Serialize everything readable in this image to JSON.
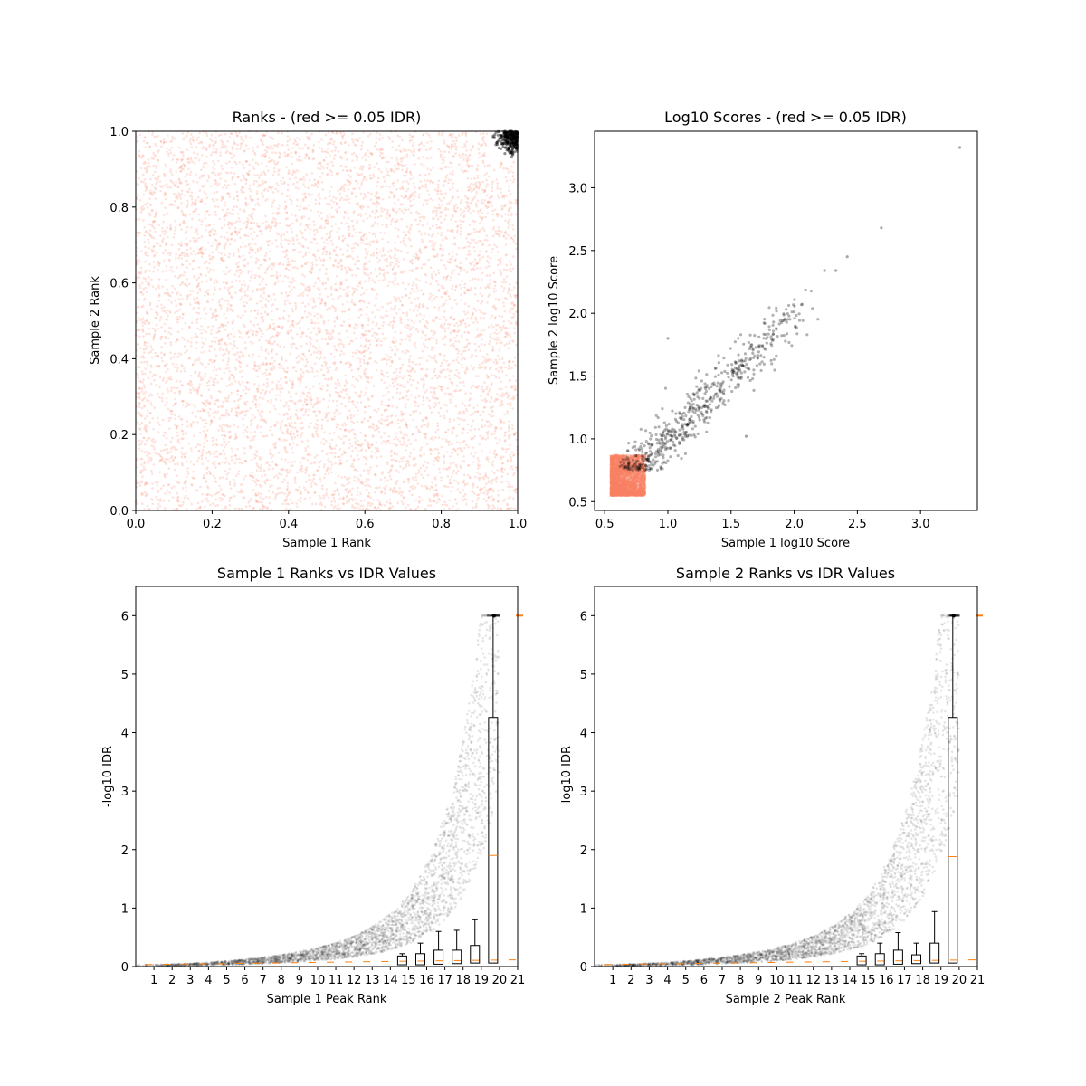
{
  "chart_data": [
    {
      "type": "scatter",
      "title": "Ranks - (red >= 0.05 IDR)",
      "xlabel": "Sample 1 Rank",
      "ylabel": "Sample 2 Rank",
      "xlim": [
        0,
        1
      ],
      "ylim": [
        0,
        1
      ],
      "xticks": [
        "0.0",
        "0.2",
        "0.4",
        "0.6",
        "0.8",
        "1.0"
      ],
      "yticks": [
        "0.0",
        "0.2",
        "0.4",
        "0.6",
        "0.8",
        "1.0"
      ],
      "grid": false,
      "colors": {
        "fail": "#fa8064",
        "pass": "#000000"
      },
      "series": [
        {
          "color_key": "fail",
          "description_x_range": [
            0,
            1
          ],
          "description_y_range": [
            0,
            1
          ]
        },
        {
          "color_key": "pass",
          "description_x_range": [
            0.92,
            1
          ],
          "description_y_range": [
            0.92,
            1
          ]
        }
      ]
    },
    {
      "type": "scatter",
      "title": "Log10 Scores - (red >= 0.05 IDR)",
      "xlabel": "Sample 1 log10 Score",
      "ylabel": "Sample 2 log10 Score",
      "xlim": [
        0.42,
        3.45
      ],
      "ylim": [
        0.43,
        3.45
      ],
      "xticks": [
        "0.5",
        "1.0",
        "1.5",
        "2.0",
        "2.5",
        "3.0"
      ],
      "yticks": [
        "0.5",
        "1.0",
        "1.5",
        "2.0",
        "2.5",
        "3.0"
      ],
      "grid": false,
      "colors": {
        "fail": "#fa8064",
        "pass": "#000000"
      },
      "outliers": [
        {
          "x": 3.31,
          "y": 3.32
        },
        {
          "x": 2.69,
          "y": 2.68
        },
        {
          "x": 2.42,
          "y": 2.45
        },
        {
          "x": 2.33,
          "y": 2.34
        },
        {
          "x": 2.24,
          "y": 2.34
        },
        {
          "x": 1.0,
          "y": 1.8
        },
        {
          "x": 1.62,
          "y": 1.02
        }
      ]
    },
    {
      "type": "scatter",
      "title": "Sample 1 Ranks vs IDR Values",
      "xlabel": "Sample 1 Peak Rank",
      "ylabel": "-log10 IDR",
      "xlim": [
        0,
        21
      ],
      "ylim": [
        0,
        6.5
      ],
      "xticks": [
        "1",
        "2",
        "3",
        "4",
        "5",
        "6",
        "7",
        "8",
        "9",
        "10",
        "11",
        "12",
        "13",
        "14",
        "15",
        "16",
        "17",
        "18",
        "19",
        "20",
        "21"
      ],
      "yticks": [
        "0",
        "1",
        "2",
        "3",
        "4",
        "5",
        "6"
      ],
      "grid": false,
      "boxes": [
        {
          "x": 15,
          "q1": 0.03,
          "q3": 0.18,
          "whisker": 0.22
        },
        {
          "x": 16,
          "q1": 0.03,
          "q3": 0.22,
          "whisker": 0.4
        },
        {
          "x": 17,
          "q1": 0.04,
          "q3": 0.28,
          "whisker": 0.6
        },
        {
          "x": 18,
          "q1": 0.05,
          "q3": 0.28,
          "whisker": 0.62
        },
        {
          "x": 19,
          "q1": 0.06,
          "q3": 0.36,
          "whisker": 0.8
        },
        {
          "x": 20,
          "q1": 0.06,
          "q3": 4.26,
          "median": 1.9,
          "whisker": 6.0
        }
      ],
      "max_value": 6.0
    },
    {
      "type": "scatter",
      "title": "Sample 2 Ranks vs IDR Values",
      "xlabel": "Sample 2 Peak Rank",
      "ylabel": "-log10 IDR",
      "xlim": [
        0,
        21
      ],
      "ylim": [
        0,
        6.5
      ],
      "xticks": [
        "1",
        "2",
        "3",
        "4",
        "5",
        "6",
        "7",
        "8",
        "9",
        "10",
        "11",
        "12",
        "13",
        "14",
        "15",
        "16",
        "17",
        "18",
        "19",
        "20",
        "21"
      ],
      "yticks": [
        "0",
        "1",
        "2",
        "3",
        "4",
        "5",
        "6"
      ],
      "grid": false,
      "boxes": [
        {
          "x": 15,
          "q1": 0.03,
          "q3": 0.18,
          "whisker": 0.22
        },
        {
          "x": 16,
          "q1": 0.03,
          "q3": 0.22,
          "whisker": 0.4
        },
        {
          "x": 17,
          "q1": 0.04,
          "q3": 0.28,
          "whisker": 0.58
        },
        {
          "x": 18,
          "q1": 0.05,
          "q3": 0.2,
          "whisker": 0.4
        },
        {
          "x": 19,
          "q1": 0.06,
          "q3": 0.4,
          "whisker": 0.94
        },
        {
          "x": 20,
          "q1": 0.06,
          "q3": 4.26,
          "median": 1.88,
          "whisker": 6.0
        }
      ],
      "max_value": 6.0
    }
  ]
}
